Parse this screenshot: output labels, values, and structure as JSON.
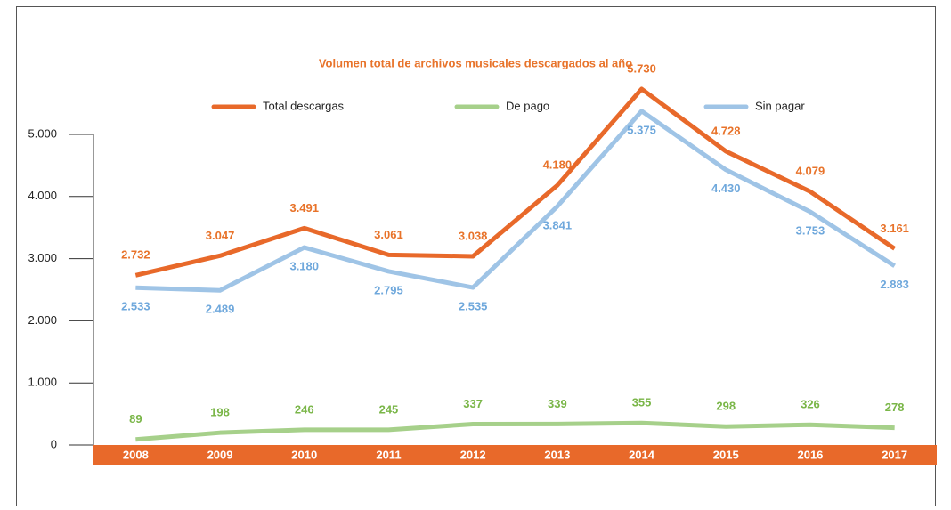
{
  "chart_data": {
    "type": "line",
    "title": "Volumen total de archivos musicales descargados al año",
    "categories": [
      "2008",
      "2009",
      "2010",
      "2011",
      "2012",
      "2013",
      "2014",
      "2015",
      "2016",
      "2017"
    ],
    "series": [
      {
        "name": "Total descargas",
        "color": "#e8692a",
        "label_color": "#e8732a",
        "values": [
          2732,
          3047,
          3491,
          3061,
          3038,
          4180,
          5730,
          4728,
          4079,
          3161
        ],
        "value_labels": [
          "2.732",
          "3.047",
          "3.491",
          "3.061",
          "3.038",
          "4.180",
          "5.730",
          "4.728",
          "4.079",
          "3.161"
        ]
      },
      {
        "name": "De pago",
        "color": "#a6d08a",
        "label_color": "#7ab648",
        "values": [
          89,
          198,
          246,
          245,
          337,
          339,
          355,
          298,
          326,
          278
        ]
      },
      {
        "name": "Sin pagar",
        "color": "#9fc4e6",
        "label_color": "#6fa8dc",
        "values": [
          2533,
          2489,
          3180,
          2795,
          2535,
          3841,
          5375,
          4430,
          3753,
          2883
        ],
        "value_labels": [
          "2.533",
          "2.489",
          "3.180",
          "2.795",
          "2.535",
          "3.841",
          "5.375",
          "4.430",
          "3.753",
          "2.883"
        ]
      }
    ],
    "ylim": [
      0,
      5000
    ],
    "yticks": [
      0,
      {
        "value": 1000,
        "label": "1.000"
      },
      {
        "value": 2000,
        "label": "2.000"
      },
      {
        "value": 3000,
        "label": "3.000"
      },
      {
        "value": 4000,
        "label": "4.000"
      },
      {
        "value": 5000,
        "label": "5.000"
      }
    ],
    "legend": "top"
  }
}
